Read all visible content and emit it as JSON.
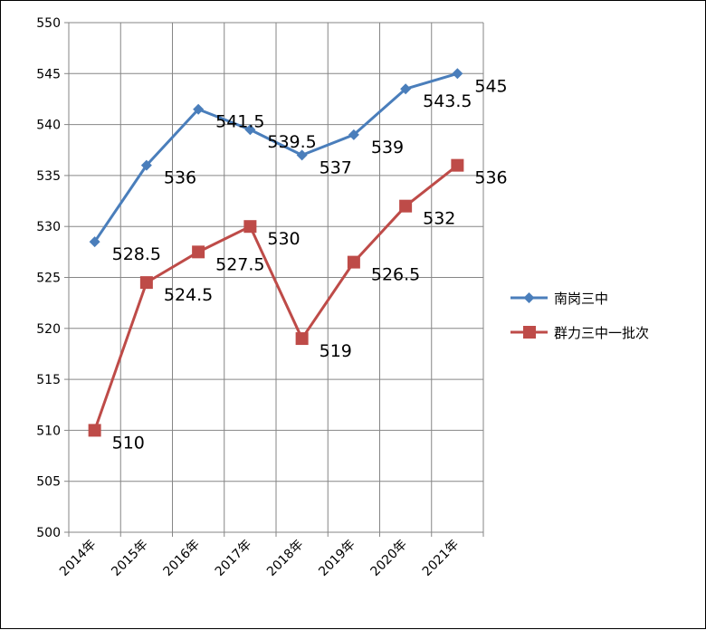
{
  "chart_data": {
    "type": "line",
    "categories": [
      "2014年",
      "2015年",
      "2016年",
      "2017年",
      "2018年",
      "2019年",
      "2020年",
      "2021年"
    ],
    "series": [
      {
        "name": "南岗三中",
        "values": [
          528.5,
          536,
          541.5,
          539.5,
          537,
          539,
          543.5,
          545
        ],
        "color": "#4a7ebb",
        "marker": "diamond"
      },
      {
        "name": "群力三中一批次",
        "values": [
          510,
          524.5,
          527.5,
          530,
          519,
          526.5,
          532,
          536
        ],
        "color": "#be4b48",
        "marker": "square"
      }
    ],
    "ylim": [
      500,
      550
    ],
    "yticks": [
      500,
      505,
      510,
      515,
      520,
      525,
      530,
      535,
      540,
      545,
      550
    ],
    "grid": true,
    "legend_position": "right"
  }
}
